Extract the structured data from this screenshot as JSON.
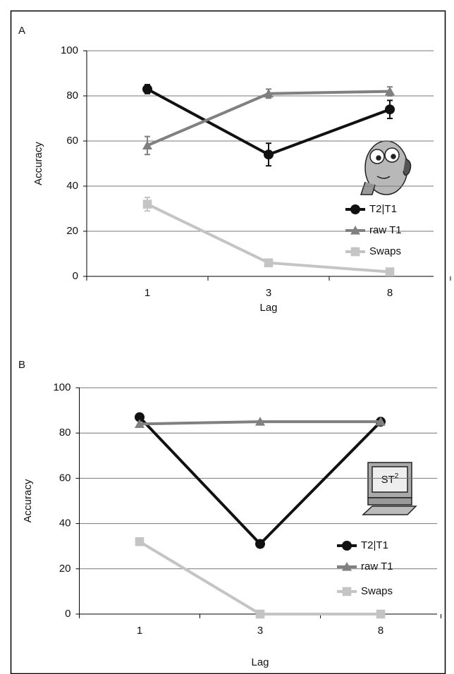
{
  "chart_data": [
    {
      "type": "line",
      "panel_label": "A",
      "ylabel": "Accuracy",
      "xlabel": "Lag",
      "categories": [
        "1",
        "3",
        "8"
      ],
      "ylim": [
        0,
        100
      ],
      "yticks": [
        0,
        20,
        40,
        60,
        80,
        100
      ],
      "grid": true,
      "series": [
        {
          "name": "T2|T1",
          "color": "#111111",
          "marker": "circle",
          "values": [
            83,
            54,
            74
          ],
          "errors": [
            2,
            5,
            4
          ]
        },
        {
          "name": "raw T1",
          "color": "#808080",
          "marker": "triangle",
          "values": [
            58,
            81,
            82
          ],
          "errors": [
            4,
            2,
            2
          ]
        },
        {
          "name": "Swaps",
          "color": "#c4c4c4",
          "marker": "square",
          "values": [
            32,
            6,
            2
          ],
          "errors": [
            3,
            1.5,
            1
          ]
        }
      ]
    },
    {
      "type": "line",
      "panel_label": "B",
      "ylabel": "Accuracy",
      "xlabel": "Lag",
      "categories": [
        "1",
        "3",
        "8"
      ],
      "ylim": [
        0,
        100
      ],
      "yticks": [
        0,
        20,
        40,
        60,
        80,
        100
      ],
      "grid": true,
      "icon_text": "ST",
      "icon_superscript": "2",
      "series": [
        {
          "name": "T2|T1",
          "color": "#111111",
          "marker": "circle",
          "values": [
            87,
            31,
            85
          ]
        },
        {
          "name": "raw T1",
          "color": "#808080",
          "marker": "triangle",
          "values": [
            84,
            85,
            85
          ]
        },
        {
          "name": "Swaps",
          "color": "#c4c4c4",
          "marker": "square",
          "values": [
            32,
            0,
            0
          ]
        }
      ]
    }
  ]
}
